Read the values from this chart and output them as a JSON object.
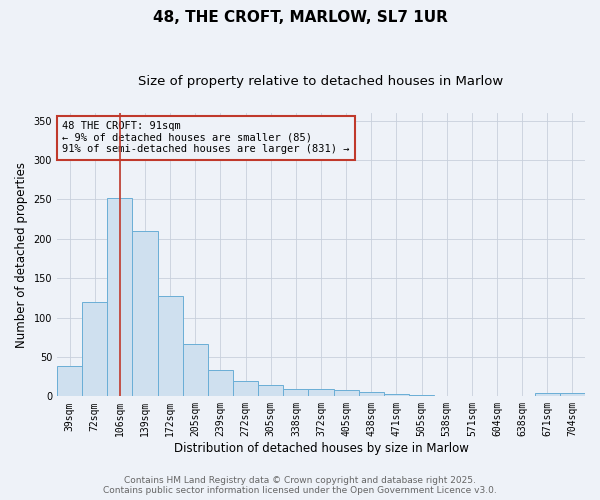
{
  "title": "48, THE CROFT, MARLOW, SL7 1UR",
  "subtitle": "Size of property relative to detached houses in Marlow",
  "xlabel": "Distribution of detached houses by size in Marlow",
  "ylabel": "Number of detached properties",
  "categories": [
    "39sqm",
    "72sqm",
    "106sqm",
    "139sqm",
    "172sqm",
    "205sqm",
    "239sqm",
    "272sqm",
    "305sqm",
    "338sqm",
    "372sqm",
    "405sqm",
    "438sqm",
    "471sqm",
    "505sqm",
    "538sqm",
    "571sqm",
    "604sqm",
    "638sqm",
    "671sqm",
    "704sqm"
  ],
  "values": [
    38,
    120,
    252,
    210,
    128,
    66,
    33,
    19,
    14,
    9,
    9,
    8,
    6,
    3,
    2,
    1,
    1,
    1,
    1,
    4,
    4
  ],
  "bar_color": "#cfe0ef",
  "bar_edge_color": "#6aaed6",
  "property_line_index": 2,
  "property_line_color": "#c0392b",
  "annotation_text": "48 THE CROFT: 91sqm\n← 9% of detached houses are smaller (85)\n91% of semi-detached houses are larger (831) →",
  "annotation_box_color": "#c0392b",
  "ylim": [
    0,
    360
  ],
  "yticks": [
    0,
    50,
    100,
    150,
    200,
    250,
    300,
    350
  ],
  "plot_bg_color": "#eef2f8",
  "fig_bg_color": "#eef2f8",
  "grid_color": "#c8d0dc",
  "footer_line1": "Contains HM Land Registry data © Crown copyright and database right 2025.",
  "footer_line2": "Contains public sector information licensed under the Open Government Licence v3.0.",
  "title_fontsize": 11,
  "subtitle_fontsize": 9.5,
  "tick_fontsize": 7,
  "label_fontsize": 8.5,
  "annotation_fontsize": 7.5,
  "footer_fontsize": 6.5
}
